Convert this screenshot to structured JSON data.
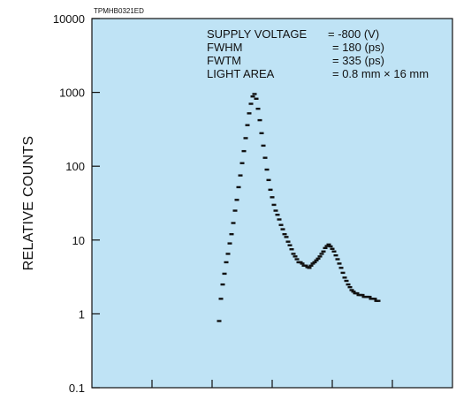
{
  "chart_data": {
    "type": "scatter",
    "title": "",
    "code": "TPMHB0321ED",
    "ylabel": "RELATIVE COUNTS",
    "xlabel": "",
    "yscale": "log",
    "ylim": [
      0.1,
      10000
    ],
    "ytick_labels": [
      "10000",
      "1000",
      "100",
      "10",
      "1",
      "0.1"
    ],
    "x_tick_count": 6,
    "grid": false,
    "annotations": [
      {
        "label": "SUPPLY VOLTAGE",
        "value": "= -800 (V)"
      },
      {
        "label": "FWHM",
        "value": "= 180 (ps)"
      },
      {
        "label": "FWTM",
        "value": "= 335 (ps)"
      },
      {
        "label": "LIGHT AREA",
        "value": "= 0.8 mm × 16 mm"
      }
    ],
    "series": [
      {
        "x": [
          0,
          1,
          2,
          3,
          4,
          5,
          6,
          7,
          8,
          9,
          10,
          11,
          12,
          13,
          14,
          15,
          16,
          17,
          18,
          19,
          20,
          21,
          22,
          23,
          24,
          25,
          26,
          27,
          28,
          29,
          30,
          31,
          32,
          33,
          34,
          35,
          36,
          37,
          38,
          39,
          40,
          41,
          42,
          43,
          44,
          45,
          46,
          47,
          48,
          49,
          50,
          51,
          52,
          53,
          54,
          55,
          56,
          57,
          58,
          59,
          60,
          61,
          62,
          63,
          64,
          65,
          66,
          67,
          68,
          69,
          70,
          71,
          72,
          73,
          74,
          75,
          76,
          77,
          78,
          79,
          80,
          81,
          82,
          83,
          84,
          85,
          86,
          87,
          88,
          89,
          90
        ],
        "y": [
          0.8,
          1.6,
          2.5,
          3.5,
          5,
          6.5,
          9,
          12,
          17,
          25,
          35,
          52,
          75,
          110,
          160,
          240,
          360,
          520,
          700,
          880,
          950,
          820,
          600,
          420,
          280,
          190,
          130,
          90,
          65,
          48,
          38,
          30,
          25,
          22,
          19,
          16,
          14,
          12,
          11,
          9.5,
          8.5,
          7.5,
          6.5,
          6,
          5.5,
          5,
          5,
          4.8,
          4.5,
          4.5,
          4.3,
          4.2,
          4.5,
          4.8,
          5,
          5.3,
          5.6,
          6,
          6.5,
          7,
          7.8,
          8.3,
          8.7,
          8.2,
          7.6,
          7,
          6.2,
          5.5,
          4.8,
          4.2,
          3.6,
          3.1,
          2.8,
          2.5,
          2.3,
          2.1,
          2,
          1.9,
          1.9,
          1.8,
          1.8,
          1.8,
          1.7,
          1.7,
          1.7,
          1.7,
          1.6,
          1.6,
          1.6,
          1.5,
          1.5
        ],
        "color": "#111111"
      }
    ]
  },
  "colors": {
    "plot_background": "#bfe3f5",
    "axis": "#111111",
    "points": "#111111"
  }
}
